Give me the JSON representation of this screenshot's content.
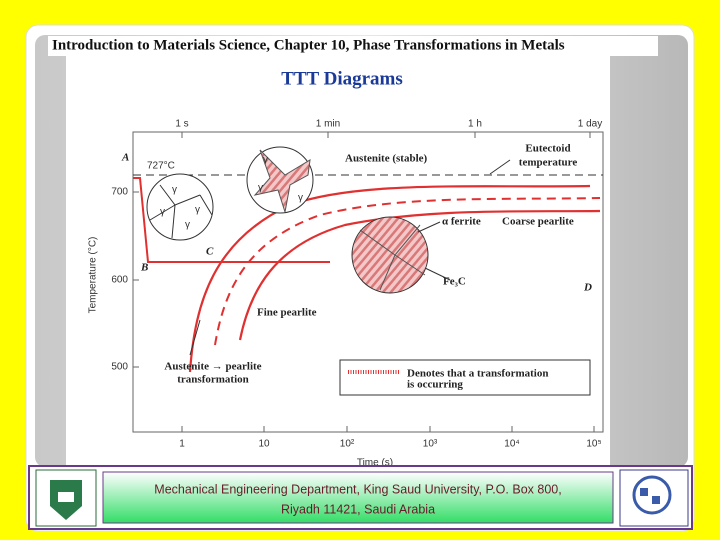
{
  "header": {
    "title": "Introduction to Materials Science, Chapter 10, Phase Transformations in Metals"
  },
  "slide": {
    "title": "TTT Diagrams"
  },
  "diagram": {
    "top_axis_labels": [
      "1 s",
      "1 min",
      "1 h",
      "1 day"
    ],
    "x_axis_labels": [
      "1",
      "10",
      "10²",
      "10³",
      "10⁴",
      "10⁵"
    ],
    "y_axis_labels": [
      "700",
      "600",
      "500"
    ],
    "y_axis_title": "Temperature (°C)",
    "x_axis_title": "Time (s)",
    "point_a": "A",
    "point_b": "B",
    "point_c": "C",
    "point_d": "D",
    "eutectoid_temp": "727°C",
    "austenite_stable": "Austenite (stable)",
    "eutectoid_label": [
      "Eutectoid",
      "temperature"
    ],
    "alpha_ferrite": "α ferrite",
    "coarse_pearlite": "Coarse pearlite",
    "fe3c": "Fe₃C",
    "fine_pearlite": "Fine pearlite",
    "transformation_label": [
      "Austenite → pearlite",
      "transformation"
    ],
    "legend_text": [
      "Denotes that a transformation",
      "is occurring"
    ],
    "gamma": "γ"
  },
  "footer": {
    "text": [
      "Mechanical Engineering Department, King Saud University, P.O. Box 800,",
      "Riyadh 11421, Saudi Arabia"
    ]
  }
}
